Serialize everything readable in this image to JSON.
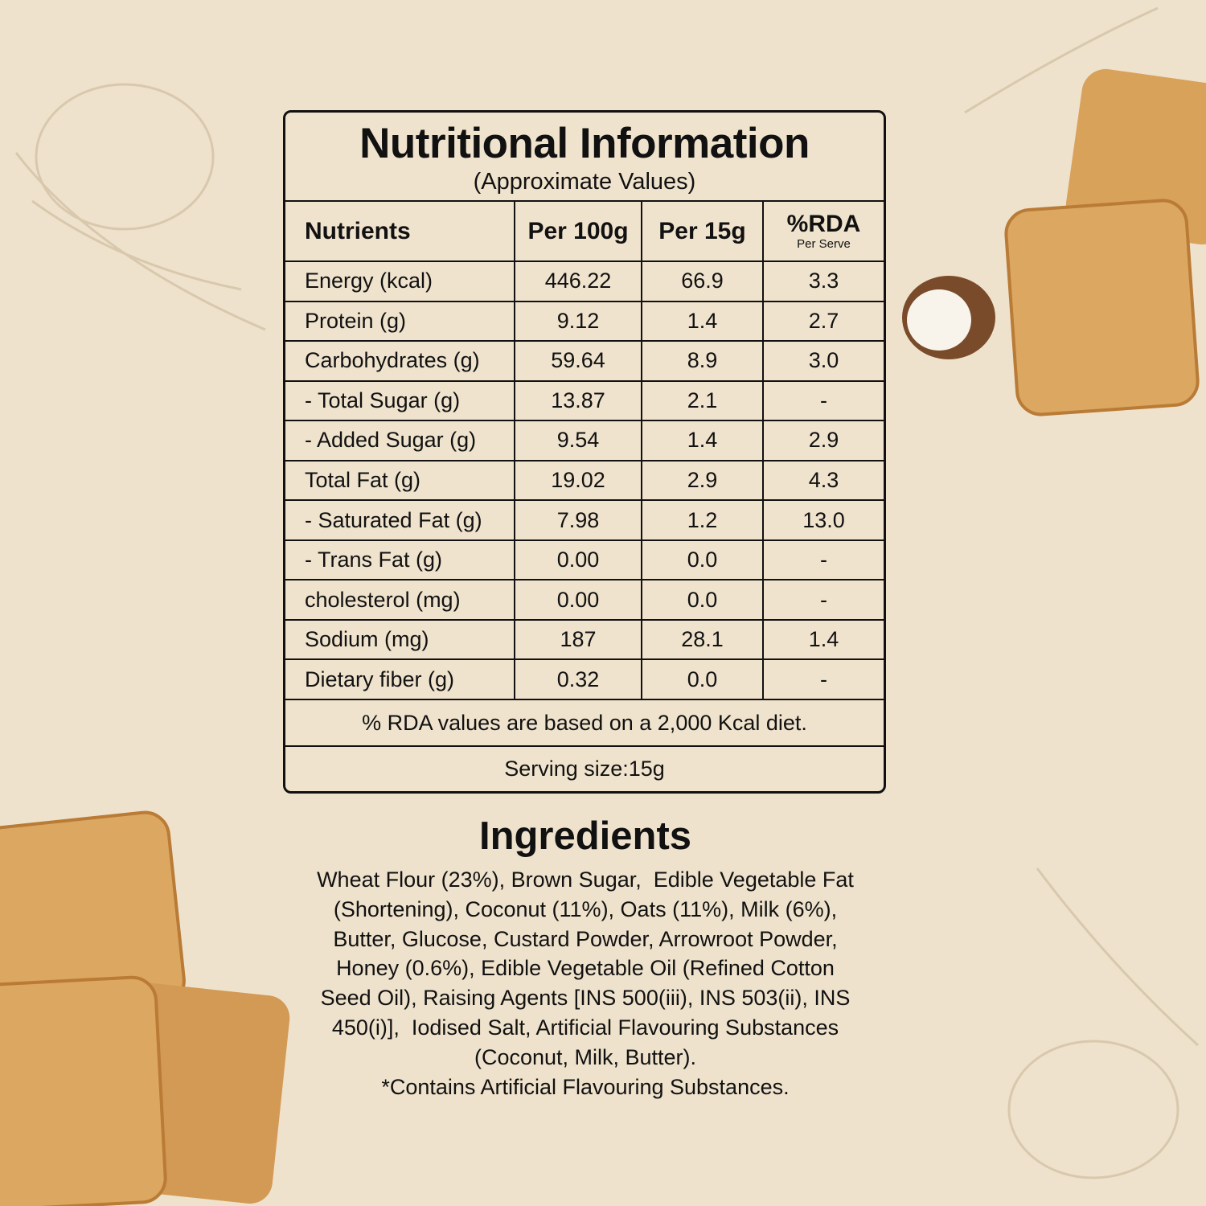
{
  "header": {
    "title": "Nutritional Information",
    "subtitle": "(Approximate Values)"
  },
  "table": {
    "columns": [
      "Nutrients",
      "Per 100g",
      "Per 15g",
      "%RDA"
    ],
    "rda_note": "Per Serve",
    "rows": [
      [
        "Energy (kcal)",
        "446.22",
        "66.9",
        "3.3"
      ],
      [
        "Protein (g)",
        "9.12",
        "1.4",
        "2.7"
      ],
      [
        "Carbohydrates (g)",
        "59.64",
        "8.9",
        "3.0"
      ],
      [
        "- Total Sugar (g)",
        "13.87",
        "2.1",
        "-"
      ],
      [
        "- Added Sugar (g)",
        "9.54",
        "1.4",
        "2.9"
      ],
      [
        "Total Fat (g)",
        "19.02",
        "2.9",
        "4.3"
      ],
      [
        "- Saturated Fat (g)",
        "7.98",
        "1.2",
        "13.0"
      ],
      [
        "- Trans Fat (g)",
        "0.00",
        "0.0",
        "-"
      ],
      [
        "cholesterol (mg)",
        "0.00",
        "0.0",
        "-"
      ],
      [
        "Sodium (mg)",
        "187",
        "28.1",
        "1.4"
      ],
      [
        "Dietary fiber (g)",
        "0.32",
        "0.0",
        "-"
      ]
    ],
    "footnote": "% RDA values are based on a 2,000 Kcal diet.",
    "serving": "Serving size:15g"
  },
  "ingredients": {
    "title": "Ingredients",
    "lines": [
      "Wheat Flour (23%), Brown Sugar,  Edible Vegetable Fat",
      "(Shortening), Coconut (11%), Oats (11%), Milk (6%),",
      "Butter, Glucose, Custard Powder, Arrowroot Powder,",
      "Honey (0.6%), Edible Vegetable Oil (Refined Cotton",
      "Seed Oil), Raising Agents [INS 500(iii), INS 503(ii), INS",
      "450(i)],  Iodised Salt, Artificial Flavouring Substances",
      "(Coconut, Milk, Butter).",
      "*Contains Artificial Flavouring Substances."
    ]
  }
}
